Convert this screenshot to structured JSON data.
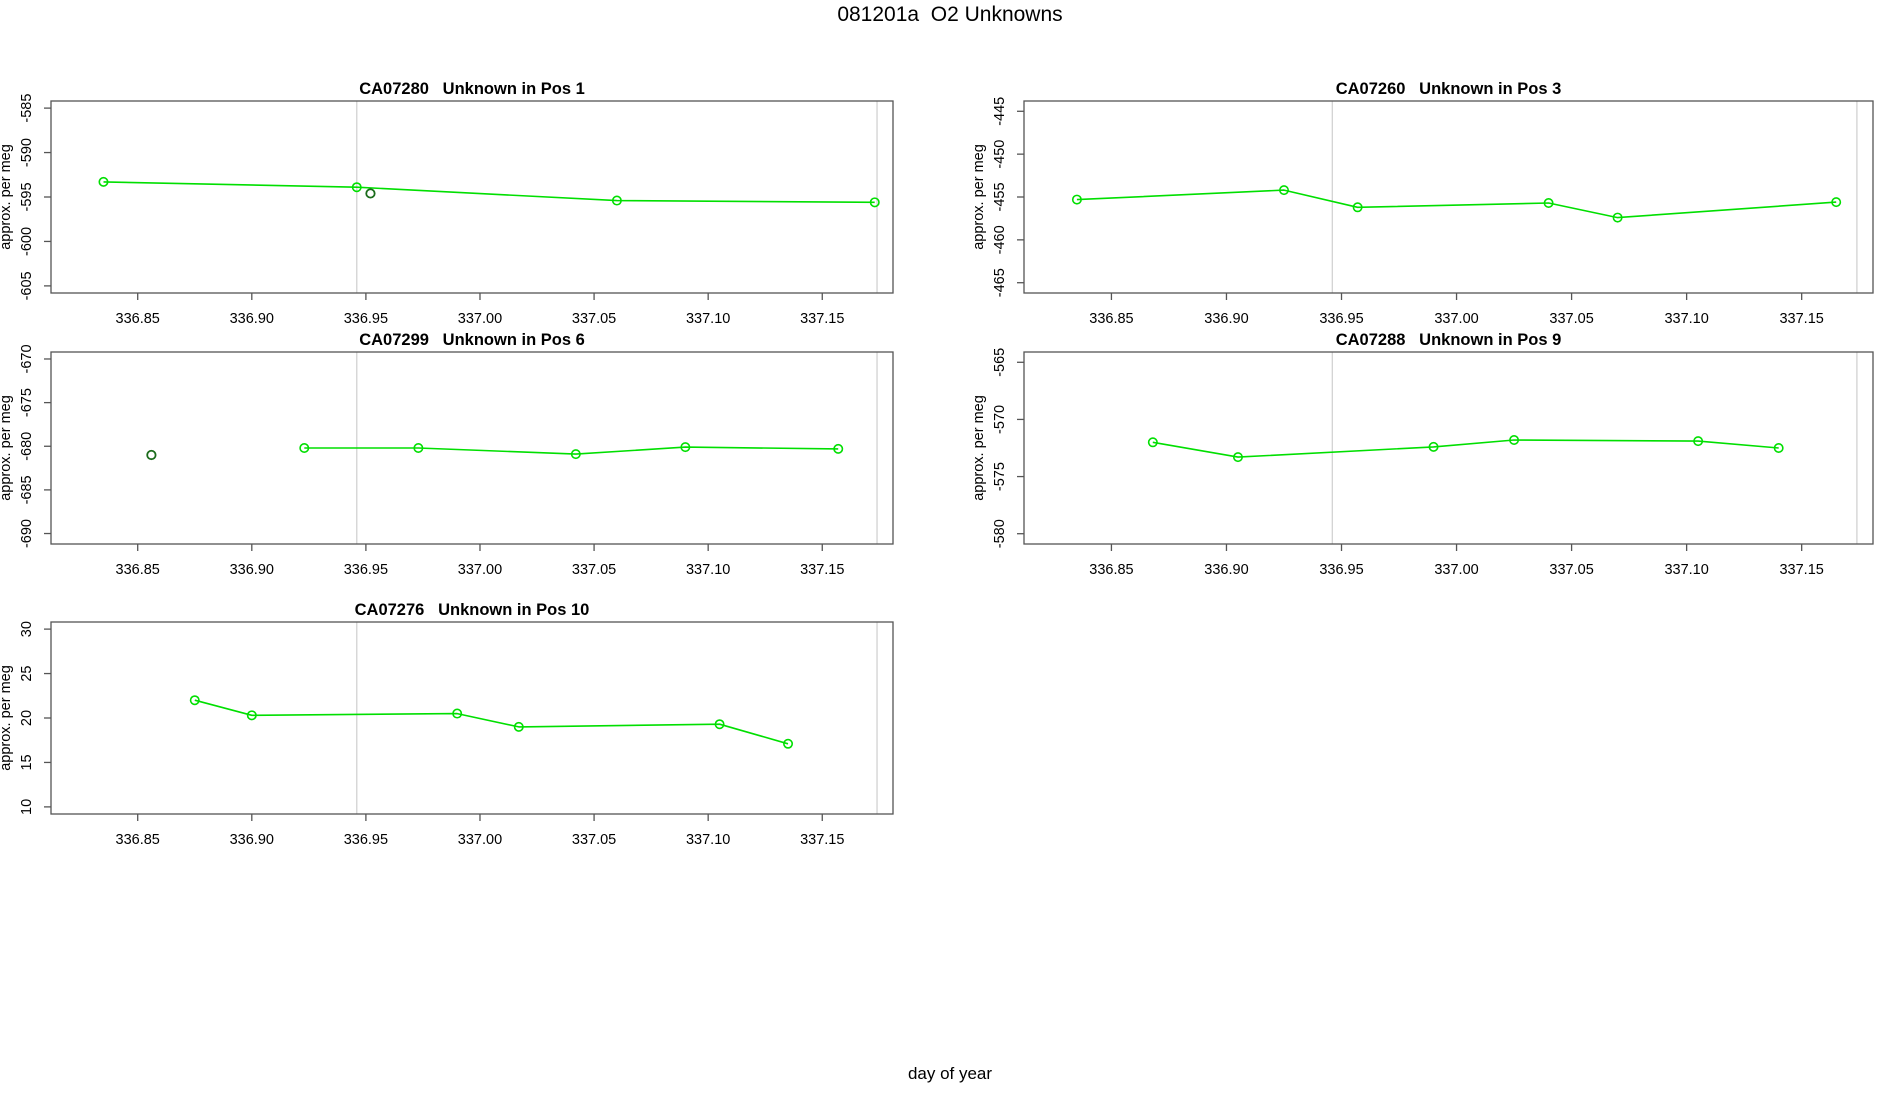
{
  "main_title": "081201a  O2 Unknowns",
  "x_axis_label": "day of year",
  "colors": {
    "series_green": "#00df00",
    "outlier_darkgreen": "#1a6b1a",
    "reference_line_gray": "#d2d2d2",
    "axis_gray": "#555555",
    "text_black": "#000000"
  },
  "x_axis": {
    "xlim": [
      336.812,
      337.181
    ],
    "ticks": [
      336.85,
      336.9,
      336.95,
      337.0,
      337.05,
      337.1,
      337.15
    ],
    "tick_labels": [
      "336.85",
      "336.90",
      "336.95",
      "337.00",
      "337.05",
      "337.10",
      "337.15"
    ],
    "reference_lines": [
      336.946,
      337.174
    ]
  },
  "chart_data": [
    {
      "type": "line",
      "id": "CA07280",
      "title": "Unknown in Pos 1",
      "ylabel": "approx. per meg",
      "yticks": [
        -585,
        -590,
        -595,
        -600,
        -605
      ],
      "ylim": [
        -605.8,
        -584.2
      ],
      "points": [
        [
          336.835,
          -593.3
        ],
        [
          336.946,
          -593.9
        ],
        [
          337.06,
          -595.4
        ],
        [
          337.173,
          -595.6
        ]
      ],
      "outliers": [
        [
          336.952,
          -594.6
        ]
      ]
    },
    {
      "type": "line",
      "id": "CA07260",
      "title": "Unknown in Pos 3",
      "ylabel": "approx. per meg",
      "yticks": [
        -445,
        -450,
        -455,
        -460,
        -465
      ],
      "ylim": [
        -466.2,
        -443.8
      ],
      "points": [
        [
          336.835,
          -455.3
        ],
        [
          336.925,
          -454.2
        ],
        [
          336.957,
          -456.2
        ],
        [
          337.04,
          -455.7
        ],
        [
          337.07,
          -457.4
        ],
        [
          337.165,
          -455.6
        ]
      ],
      "outliers": []
    },
    {
      "type": "line",
      "id": "CA07299",
      "title": "Unknown in Pos 6",
      "ylabel": "approx. per meg",
      "yticks": [
        -670,
        -675,
        -680,
        -685,
        -690
      ],
      "ylim": [
        -691.2,
        -669.2
      ],
      "points": [
        [
          336.923,
          -680.2
        ],
        [
          336.973,
          -680.2
        ],
        [
          337.042,
          -680.9
        ],
        [
          337.09,
          -680.1
        ],
        [
          337.157,
          -680.3
        ]
      ],
      "outliers": [
        [
          336.856,
          -681.0
        ]
      ]
    },
    {
      "type": "line",
      "id": "CA07288",
      "title": "Unknown in Pos 9",
      "ylabel": "approx. per meg",
      "yticks": [
        -565,
        -570,
        -575,
        -580
      ],
      "ylim": [
        -580.9,
        -564.1
      ],
      "points": [
        [
          336.868,
          -572.0
        ],
        [
          336.905,
          -573.3
        ],
        [
          336.99,
          -572.4
        ],
        [
          337.025,
          -571.8
        ],
        [
          337.105,
          -571.9
        ],
        [
          337.14,
          -572.5
        ]
      ],
      "outliers": []
    },
    {
      "type": "line",
      "id": "CA07276",
      "title": "Unknown in Pos 10",
      "ylabel": "approx. per meg",
      "yticks": [
        30,
        25,
        20,
        15,
        10
      ],
      "ylim": [
        9.2,
        30.8
      ],
      "points": [
        [
          336.875,
          22.0
        ],
        [
          336.9,
          20.3
        ],
        [
          336.99,
          20.5
        ],
        [
          337.017,
          19.0
        ],
        [
          337.105,
          19.3
        ],
        [
          337.135,
          17.1
        ]
      ],
      "outliers": []
    }
  ]
}
